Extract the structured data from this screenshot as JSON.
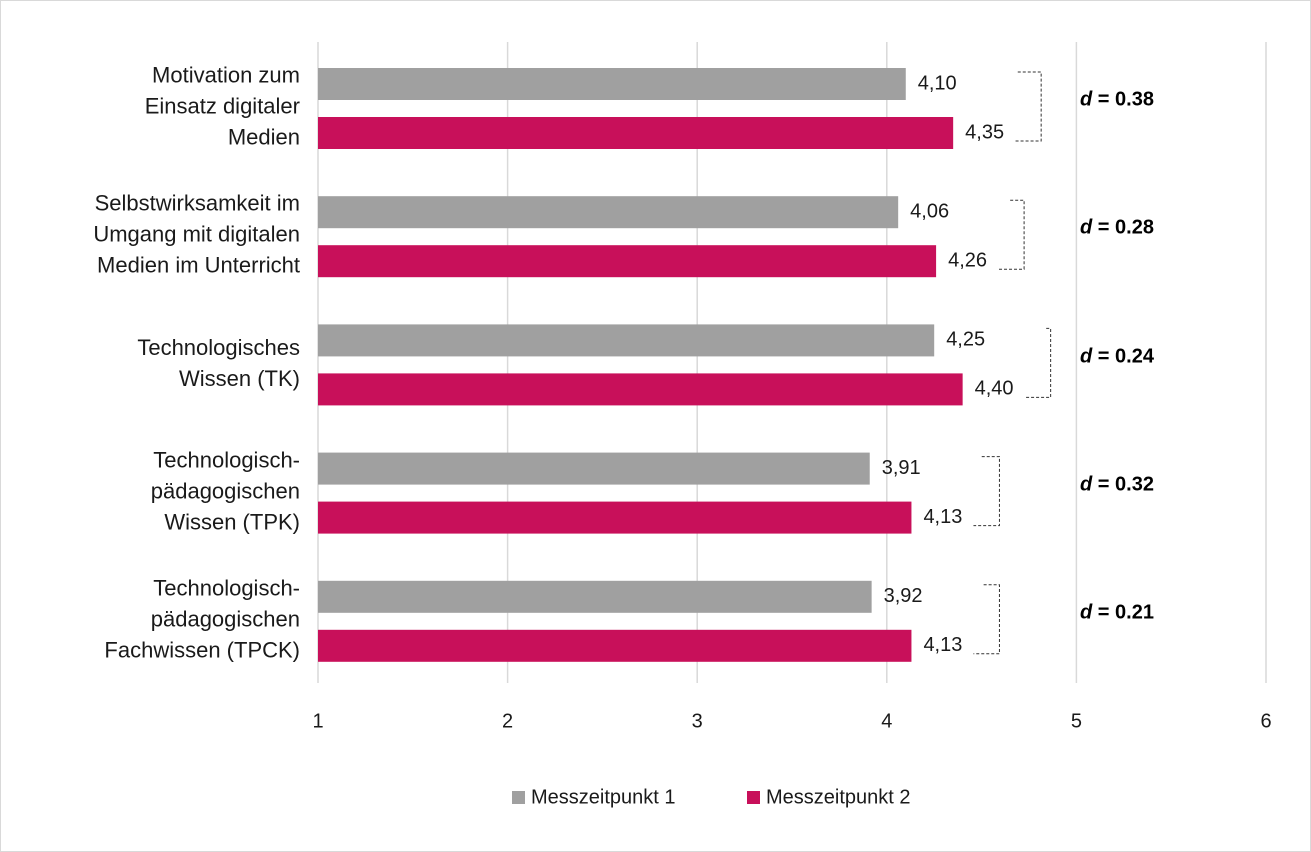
{
  "chart_data": {
    "type": "bar",
    "orientation": "horizontal",
    "categories": [
      "Motivation zum\nEinsatz digitaler\nMedien",
      "Selbstwirksamkeit im\nUmgang mit digitalen\nMedien im Unterricht",
      "Technologisches\nWissen (TK)",
      "Technologisch-\npädagogischen\nWissen (TPK)",
      "Technologisch-\npädagogischen\nFachwissen (TPCK)"
    ],
    "series": [
      {
        "name": "Messzeitpunkt 1",
        "color": "#a0a0a0",
        "values": [
          4.1,
          4.06,
          4.25,
          3.91,
          3.92
        ],
        "value_labels": [
          "4,10",
          "4,06",
          "4,25",
          "3,91",
          "3,92"
        ]
      },
      {
        "name": "Messzeitpunkt 2",
        "color": "#c8105a",
        "values": [
          4.35,
          4.26,
          4.4,
          4.13,
          4.13
        ],
        "value_labels": [
          "4,35",
          "4,26",
          "4,40",
          "4,13",
          "4,13"
        ]
      }
    ],
    "annotations": [
      "d = 0.38",
      "d = 0.28",
      "d = 0.24",
      "d = 0.32",
      "d = 0.21"
    ],
    "xlim": [
      1,
      6
    ],
    "xticks": [
      1,
      2,
      3,
      4,
      5,
      6
    ],
    "grid": true,
    "legend": "bottom"
  }
}
